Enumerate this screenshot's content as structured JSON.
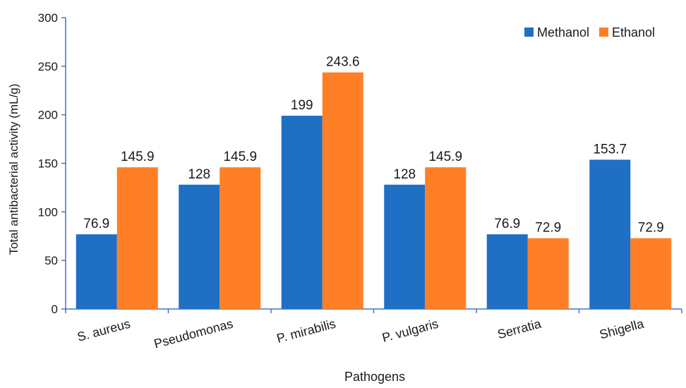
{
  "chart_data": {
    "type": "bar",
    "title": "",
    "xlabel": "Pathogens",
    "ylabel": "Total antibacterial activity (mL/g)",
    "categories": [
      "S. aureus",
      "Pseudomonas",
      "P. mirabilis",
      "P. vulgaris",
      "Serratia",
      "Shigella"
    ],
    "series": [
      {
        "name": "Methanol",
        "color": "#1f6fc5",
        "values": [
          76.9,
          128,
          199,
          128,
          76.9,
          153.7
        ]
      },
      {
        "name": "Ethanol",
        "color": "#ff7f27",
        "values": [
          145.9,
          145.9,
          243.6,
          145.9,
          72.9,
          72.9
        ]
      }
    ],
    "data_labels": [
      [
        "76.9",
        "128",
        "199",
        "128",
        "76.9",
        "153.7"
      ],
      [
        "145.9",
        "145.9",
        "243.6",
        "145.9",
        "72.9",
        "72.9"
      ]
    ],
    "ylim": [
      0,
      300
    ],
    "yticks": [
      "0",
      "50",
      "100",
      "150",
      "200",
      "250",
      "300"
    ],
    "grid": false,
    "legend_position": "top-right",
    "axis_color": "#4472c4"
  }
}
